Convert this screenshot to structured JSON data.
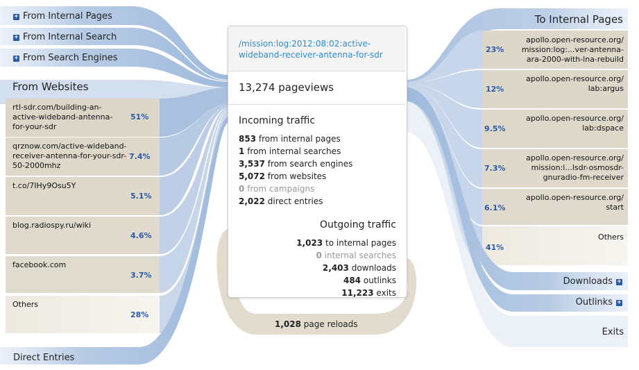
{
  "left_categories": [
    {
      "label": "From Internal Pages",
      "icon": "plus-icon"
    },
    {
      "label": "From Internal Search",
      "icon": "plus-icon"
    },
    {
      "label": "From Search Engines",
      "icon": "plus-icon"
    }
  ],
  "websites": {
    "header": "From Websites",
    "items": [
      {
        "label": "rtl-sdr.com/building-an-active-wideband-antenna-for-your-sdr",
        "pct": "51%"
      },
      {
        "label": "qrznow.com/active-wideband-receiver-antenna-for-your-sdr-50-2000mhz",
        "pct": "7.4%"
      },
      {
        "label": "t.co/7IHy9Osu5Y",
        "pct": "5.1%"
      },
      {
        "label": "blog.radiospy.ru/wiki",
        "pct": "4.6%"
      },
      {
        "label": "facebook.com",
        "pct": "3.7%"
      },
      {
        "label": "Others",
        "pct": "28%"
      }
    ]
  },
  "direct_entries": "Direct Entries",
  "card": {
    "page_url": "/mission:log:2012:08:02:active-wideband-receiver-antenna-for-sdr",
    "pageviews": "13,274 pageviews",
    "incoming_title": "Incoming traffic",
    "incoming": [
      {
        "num": "853",
        "text": "from internal pages"
      },
      {
        "num": "1",
        "text": "from internal searches"
      },
      {
        "num": "3,537",
        "text": "from search engines"
      },
      {
        "num": "5,072",
        "text": "from websites"
      },
      {
        "num": "0",
        "text": "from campaigns"
      },
      {
        "num": "2,022",
        "text": "direct entries"
      }
    ],
    "outgoing_title": "Outgoing traffic",
    "outgoing": [
      {
        "num": "1,023",
        "text": "to internal pages"
      },
      {
        "num": "0",
        "text": "internal searches"
      },
      {
        "num": "2,403",
        "text": "downloads"
      },
      {
        "num": "484",
        "text": "outlinks"
      },
      {
        "num": "11,223",
        "text": "exits"
      }
    ]
  },
  "reloads": {
    "num": "1,028",
    "text": "page reloads"
  },
  "internal_pages": {
    "header": "To Internal Pages",
    "items": [
      {
        "label": "apollo.open-resource.org/ mission:log:...ver-antenna-ara-2000-with-lna-rebuild",
        "pct": "23%"
      },
      {
        "label": "apollo.open-resource.org/ lab:argus",
        "pct": "12%"
      },
      {
        "label": "apollo.open-resource.org/ lab:dspace",
        "pct": "9.5%"
      },
      {
        "label": "apollo.open-resource.org/ mission:l...lsdr-osmosdr-gnuradio-fm-receiver",
        "pct": "7.3%"
      },
      {
        "label": "apollo.open-resource.org/ start",
        "pct": "6.1%"
      },
      {
        "label": "Others",
        "pct": "41%"
      }
    ]
  },
  "right_categories": [
    {
      "label": "Downloads",
      "icon": "plus-icon"
    },
    {
      "label": "Outlinks",
      "icon": "plus-icon"
    }
  ],
  "exits": "Exits",
  "colors": {
    "blue": "#b3c8e3",
    "beige": "#e3ddd0",
    "accent": "#2b5aa8",
    "link": "#2e8bcc"
  }
}
